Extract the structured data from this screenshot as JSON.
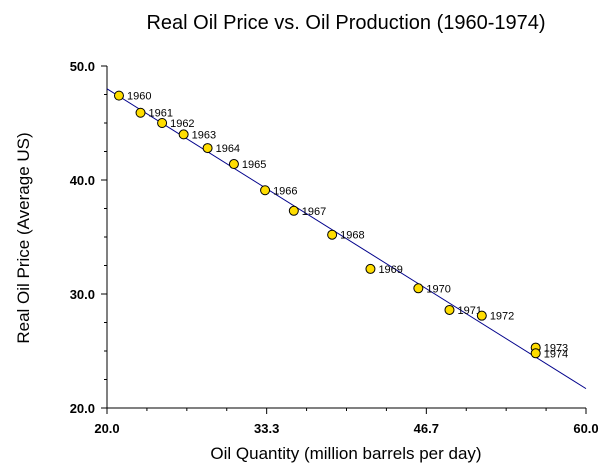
{
  "chart_data": {
    "type": "scatter",
    "title": "Real Oil Price vs. Oil Production (1960-1974)",
    "xlabel": "Oil Quantity (million barrels per day)",
    "ylabel": "Real Oil Price (Average US)",
    "xlim": [
      20.0,
      60.0
    ],
    "ylim": [
      20.0,
      50.0
    ],
    "x_ticks": [
      "20.0",
      "33.3",
      "46.7",
      "60.0"
    ],
    "y_ticks": [
      "20.0",
      "30.0",
      "40.0",
      "50.0"
    ],
    "grid": false,
    "points": [
      {
        "label": "1960",
        "x": 21.0,
        "y": 47.4
      },
      {
        "label": "1961",
        "x": 22.8,
        "y": 45.9
      },
      {
        "label": "1962",
        "x": 24.6,
        "y": 45.0
      },
      {
        "label": "1963",
        "x": 26.4,
        "y": 44.0
      },
      {
        "label": "1964",
        "x": 28.4,
        "y": 42.8
      },
      {
        "label": "1965",
        "x": 30.6,
        "y": 41.4
      },
      {
        "label": "1966",
        "x": 33.2,
        "y": 39.1
      },
      {
        "label": "1967",
        "x": 35.6,
        "y": 37.3
      },
      {
        "label": "1968",
        "x": 38.8,
        "y": 35.2
      },
      {
        "label": "1969",
        "x": 42.0,
        "y": 32.2
      },
      {
        "label": "1970",
        "x": 46.0,
        "y": 30.5
      },
      {
        "label": "1971",
        "x": 48.6,
        "y": 28.6
      },
      {
        "label": "1972",
        "x": 51.3,
        "y": 28.1
      },
      {
        "label": "1973",
        "x": 55.8,
        "y": 25.3
      },
      {
        "label": "1974",
        "x": 55.8,
        "y": 24.8
      }
    ],
    "trendline": {
      "x": [
        20.0,
        60.0
      ],
      "y": [
        48.0,
        21.7
      ]
    },
    "colors": {
      "marker_fill": "#ffdd00",
      "marker_stroke": "#000000",
      "line": "#00008b",
      "axis": "#000000"
    }
  }
}
